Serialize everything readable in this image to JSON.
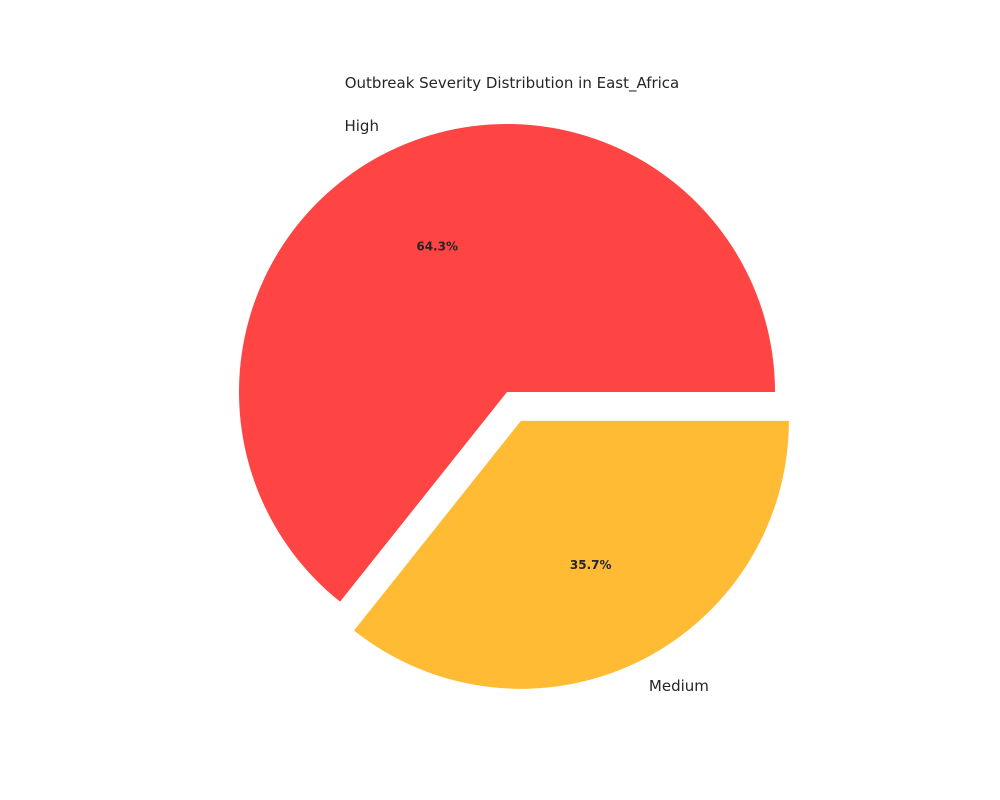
{
  "chart_data": {
    "type": "pie",
    "title": "Outbreak Severity Distribution in East_Africa",
    "categories": [
      "High",
      "Medium"
    ],
    "values": [
      64.3,
      35.7
    ],
    "percent_labels": [
      "64.3%",
      "35.7%"
    ],
    "colors": [
      "#ff4444",
      "#ffbb33"
    ],
    "exploded": [
      "Medium"
    ],
    "legend": false
  }
}
